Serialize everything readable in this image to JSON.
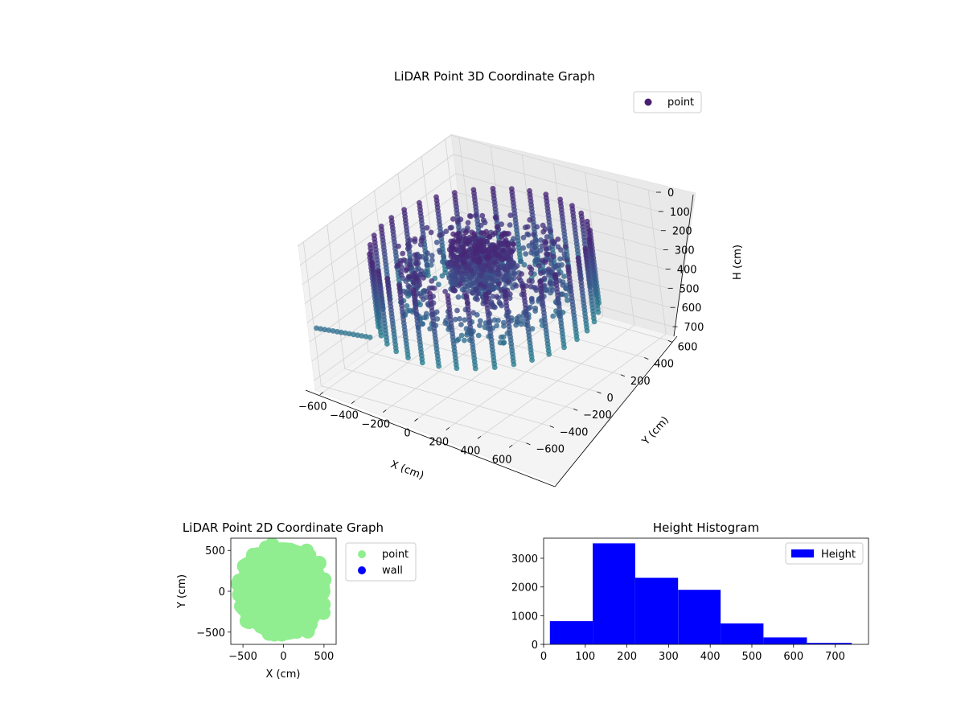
{
  "chart_data": [
    {
      "type": "scatter",
      "title": "LiDAR Point 3D Coordinate Graph",
      "xlabel": "X (cm)",
      "ylabel": "Y (cm)",
      "zlabel": "H (cm)",
      "xlim": [
        -650,
        650
      ],
      "ylim": [
        -650,
        650
      ],
      "zlim": [
        0,
        750
      ],
      "z_inverted": true,
      "xticks": [
        -600,
        -400,
        -200,
        0,
        200,
        400,
        600
      ],
      "yticks": [
        -600,
        -400,
        -200,
        0,
        200,
        400,
        600
      ],
      "zticks": [
        0,
        100,
        200,
        300,
        400,
        500,
        600,
        700
      ],
      "grid": true,
      "legend": {
        "placement": "top-right",
        "entries": [
          {
            "label": "point",
            "color": "#481f70"
          }
        ]
      },
      "colormap": "viridis",
      "series": [
        {
          "name": "point",
          "description_points": {
            "outer_ring_radius": 560,
            "posts_count": 36,
            "post_height_range": [
              120,
              500
            ],
            "inner_ring_radius": 380,
            "inner_cluster_radius": 180
          }
        }
      ]
    },
    {
      "type": "scatter",
      "title": "LiDAR Point 2D Coordinate Graph",
      "xlabel": "X (cm)",
      "ylabel": "Y (cm)",
      "xlim": [
        -650,
        650
      ],
      "ylim": [
        -650,
        650
      ],
      "xticks": [
        -500,
        0,
        500
      ],
      "yticks": [
        -500,
        0,
        500
      ],
      "legend": {
        "placement": "outside-right",
        "entries": [
          {
            "label": "point",
            "color": "#90ee90"
          },
          {
            "label": "wall",
            "color": "#0000ff"
          }
        ]
      },
      "series": [
        {
          "name": "point",
          "color": "#90ee90",
          "region": {
            "radius_x": 560,
            "radius_y": 600,
            "center": [
              -10,
              0
            ]
          }
        },
        {
          "name": "wall",
          "color": "#0000ff",
          "points": []
        }
      ]
    },
    {
      "type": "bar",
      "title": "Height Histogram",
      "xlim": [
        0,
        780
      ],
      "ylim": [
        0,
        3700
      ],
      "xticks": [
        0,
        100,
        200,
        300,
        400,
        500,
        600,
        700
      ],
      "yticks": [
        0,
        1000,
        2000,
        3000
      ],
      "legend": {
        "placement": "top-right",
        "entries": [
          {
            "label": "Height",
            "color": "#0000ff"
          }
        ]
      },
      "bin_edges": [
        15,
        118,
        220,
        323,
        425,
        528,
        632,
        740
      ],
      "values": [
        810,
        3520,
        2320,
        1900,
        730,
        240,
        50
      ],
      "color": "#0000ff"
    }
  ]
}
